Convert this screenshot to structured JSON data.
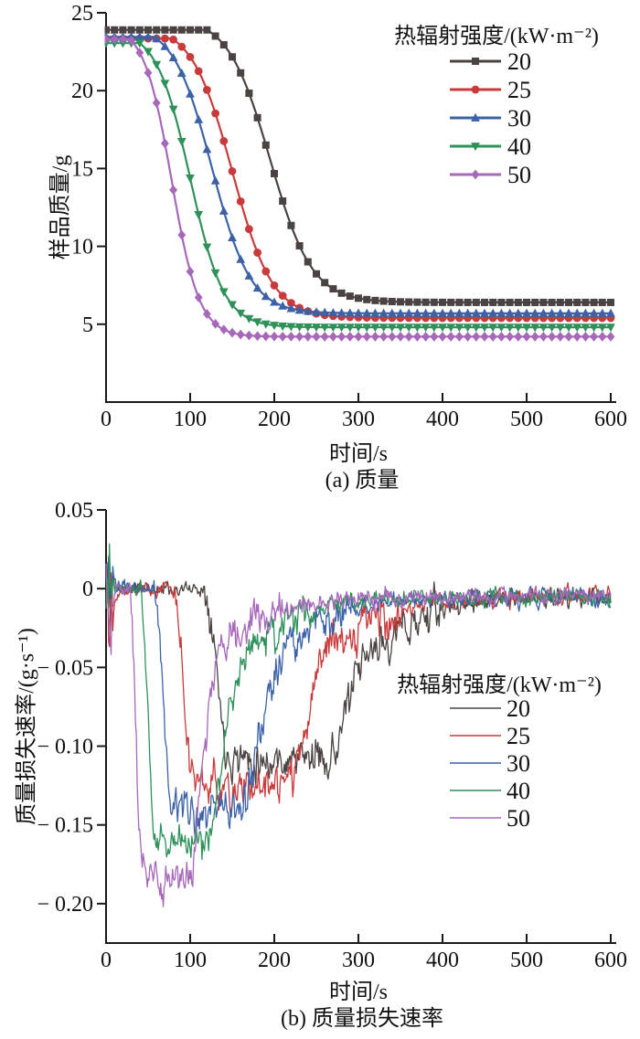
{
  "page": {
    "background": "#ffffff"
  },
  "chart_data": [
    {
      "type": "line",
      "panel_label": "(a) 质量",
      "xlabel": "时间/s",
      "ylabel": "样品质量/g",
      "xlim": [
        0,
        600
      ],
      "ylim": [
        0,
        25
      ],
      "xticks": [
        0,
        100,
        200,
        300,
        400,
        500,
        600
      ],
      "yticks": [
        5,
        10,
        15,
        20,
        25
      ],
      "grid": false,
      "legend": {
        "title": "热辐射强度/(kW·m⁻²)",
        "position": "upper-right"
      },
      "series": [
        {
          "name": "20",
          "color": "#4a4341",
          "marker": "square",
          "model": {
            "m0": 23.9,
            "mf": 6.4,
            "tc": 195,
            "w": 25
          },
          "points": [
            [
              0,
              23.9
            ],
            [
              50,
              23.9
            ],
            [
              100,
              23.9
            ],
            [
              125,
              23.9
            ],
            [
              150,
              22.2
            ],
            [
              200,
              14.7
            ],
            [
              250,
              8.2
            ],
            [
              300,
              6.7
            ],
            [
              350,
              6.45
            ],
            [
              400,
              6.4
            ],
            [
              500,
              6.4
            ],
            [
              600,
              6.4
            ]
          ]
        },
        {
          "name": "25",
          "color": "#c83a3c",
          "marker": "circle",
          "model": {
            "m0": 23.35,
            "mf": 5.4,
            "tc": 150,
            "w": 24
          },
          "points": [
            [
              0,
              23.35
            ],
            [
              50,
              23.35
            ],
            [
              80,
              23.35
            ],
            [
              100,
              22.2
            ],
            [
              150,
              14.8
            ],
            [
              200,
              7.5
            ],
            [
              250,
              5.7
            ],
            [
              300,
              5.45
            ],
            [
              400,
              5.4
            ],
            [
              500,
              5.4
            ],
            [
              600,
              5.4
            ]
          ]
        },
        {
          "name": "30",
          "color": "#3b62a7",
          "marker": "triangle-up",
          "model": {
            "m0": 23.45,
            "mf": 5.7,
            "tc": 126,
            "w": 23
          },
          "points": [
            [
              0,
              23.45
            ],
            [
              58,
              23.45
            ],
            [
              100,
              19.8
            ],
            [
              150,
              10.6
            ],
            [
              200,
              6.4
            ],
            [
              250,
              5.8
            ],
            [
              300,
              5.7
            ],
            [
              400,
              5.7
            ],
            [
              500,
              5.7
            ],
            [
              600,
              5.7
            ]
          ]
        },
        {
          "name": "40",
          "color": "#2e915a",
          "marker": "triangle-down",
          "model": {
            "m0": 23.05,
            "mf": 4.8,
            "tc": 100,
            "w": 20
          },
          "points": [
            [
              0,
              23.05
            ],
            [
              40,
              23.05
            ],
            [
              50,
              22.5
            ],
            [
              100,
              14.4
            ],
            [
              150,
              6.3
            ],
            [
              200,
              4.9
            ],
            [
              250,
              4.8
            ],
            [
              400,
              4.8
            ],
            [
              500,
              4.8
            ],
            [
              600,
              4.8
            ]
          ]
        },
        {
          "name": "50",
          "color": "#a768ba",
          "marker": "diamond",
          "model": {
            "m0": 23.3,
            "mf": 4.2,
            "tc": 78,
            "w": 16.5
          },
          "points": [
            [
              0,
              23.3
            ],
            [
              28,
              23.3
            ],
            [
              50,
              21.2
            ],
            [
              100,
              8.4
            ],
            [
              150,
              4.5
            ],
            [
              200,
              4.2
            ],
            [
              300,
              4.2
            ],
            [
              400,
              4.2
            ],
            [
              600,
              4.2
            ]
          ]
        }
      ]
    },
    {
      "type": "line",
      "panel_label": "(b) 质量损失速率",
      "xlabel": "时间/s",
      "ylabel": "质量损失速率/(g·s⁻¹)",
      "xlim": [
        0,
        600
      ],
      "ylim": [
        -0.225,
        0.05
      ],
      "xticks": [
        0,
        100,
        200,
        300,
        400,
        500,
        600
      ],
      "yticks": [
        0.05,
        0,
        -0.05,
        -0.1,
        -0.15,
        -0.2
      ],
      "ytick_labels": [
        "0.05",
        "0",
        "− 0.05",
        "− 0.10",
        "− 0.15",
        "− 0.20"
      ],
      "grid": false,
      "legend": {
        "title": "热辐射强度/(kW·m⁻²)",
        "position": "center-right"
      },
      "series": [
        {
          "name": "20",
          "color": "#4a4341",
          "model": {
            "t_drop": 118,
            "drop_dur": 28,
            "v_min": -0.105,
            "t_recover": 272,
            "recover_dur": 60,
            "v_end": -0.005,
            "noise_seed": 11
          },
          "points": [
            [
              0,
              0
            ],
            [
              100,
              0
            ],
            [
              150,
              -0.105
            ],
            [
              200,
              -0.109
            ],
            [
              250,
              -0.107
            ],
            [
              300,
              -0.055
            ],
            [
              350,
              -0.027
            ],
            [
              400,
              -0.013
            ],
            [
              500,
              -0.006
            ],
            [
              600,
              -0.005
            ]
          ]
        },
        {
          "name": "25",
          "color": "#c83a3c",
          "model": {
            "t_drop": 80,
            "drop_dur": 24,
            "v_min": -0.123,
            "t_recover": 222,
            "recover_dur": 58,
            "v_end": -0.005,
            "noise_seed": 22
          },
          "points": [
            [
              0,
              0
            ],
            [
              50,
              0
            ],
            [
              100,
              -0.117
            ],
            [
              150,
              -0.127
            ],
            [
              200,
              -0.126
            ],
            [
              250,
              -0.059
            ],
            [
              300,
              -0.026
            ],
            [
              350,
              -0.013
            ],
            [
              400,
              -0.008
            ],
            [
              500,
              -0.006
            ],
            [
              600,
              -0.005
            ]
          ]
        },
        {
          "name": "30",
          "color": "#3b62a7",
          "model": {
            "t_drop": 57,
            "drop_dur": 22,
            "v_min": -0.139,
            "t_recover": 168,
            "recover_dur": 55,
            "v_end": -0.005,
            "noise_seed": 33
          },
          "points": [
            [
              0,
              0
            ],
            [
              50,
              0
            ],
            [
              100,
              -0.142
            ],
            [
              150,
              -0.142
            ],
            [
              200,
              -0.053
            ],
            [
              250,
              -0.023
            ],
            [
              300,
              -0.012
            ],
            [
              400,
              -0.006
            ],
            [
              500,
              -0.005
            ],
            [
              600,
              -0.005
            ]
          ]
        },
        {
          "name": "40",
          "color": "#2e915a",
          "model": {
            "t_drop": 40,
            "drop_dur": 19,
            "v_min": -0.158,
            "t_recover": 126,
            "recover_dur": 50,
            "v_end": -0.005,
            "noise_seed": 44
          },
          "points": [
            [
              0,
              0
            ],
            [
              50,
              -0.088
            ],
            [
              100,
              -0.163
            ],
            [
              150,
              -0.068
            ],
            [
              200,
              -0.024
            ],
            [
              250,
              -0.013
            ],
            [
              300,
              -0.008
            ],
            [
              400,
              -0.006
            ],
            [
              500,
              -0.005
            ],
            [
              600,
              -0.005
            ]
          ]
        },
        {
          "name": "50",
          "color": "#a768ba",
          "model": {
            "t_drop": 27,
            "drop_dur": 17,
            "v_min": -0.179,
            "t_recover": 104,
            "recover_dur": 38,
            "v_end": -0.005,
            "noise_seed": 55
          },
          "points": [
            [
              0,
              0
            ],
            [
              50,
              -0.181
            ],
            [
              100,
              -0.18
            ],
            [
              150,
              -0.031
            ],
            [
              200,
              -0.015
            ],
            [
              250,
              -0.009
            ],
            [
              300,
              -0.007
            ],
            [
              400,
              -0.005
            ],
            [
              500,
              -0.005
            ],
            [
              600,
              -0.005
            ]
          ]
        }
      ]
    }
  ]
}
